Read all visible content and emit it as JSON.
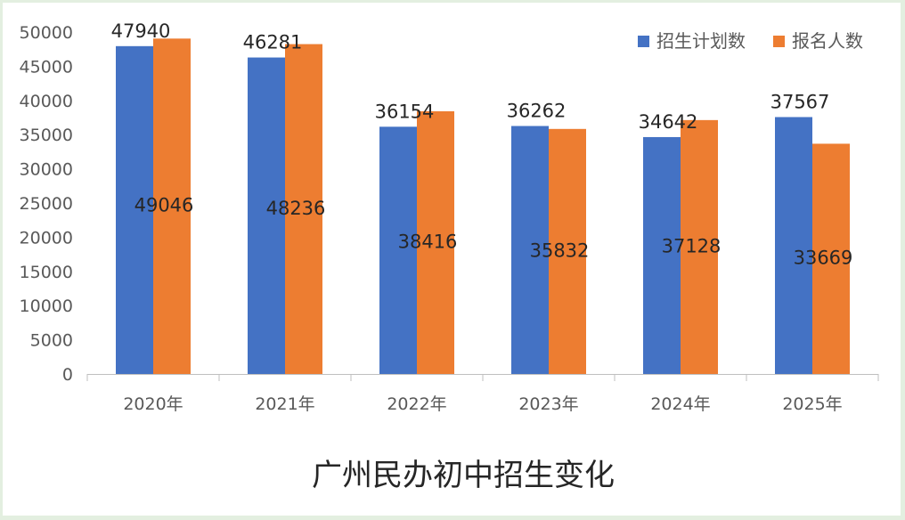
{
  "chart_data": {
    "type": "bar",
    "title": "广州民办初中招生变化",
    "categories": [
      "2020年",
      "2021年",
      "2022年",
      "2023年",
      "2024年",
      "2025年"
    ],
    "series": [
      {
        "name": "招生计划数",
        "color": "#4472c4",
        "values": [
          47940,
          46281,
          36154,
          36262,
          34642,
          37567
        ]
      },
      {
        "name": "报名人数",
        "color": "#ed7d31",
        "values": [
          49046,
          48236,
          38416,
          35832,
          37128,
          33669
        ]
      }
    ],
    "ylim": [
      0,
      50000
    ],
    "yticks": [
      0,
      5000,
      10000,
      15000,
      20000,
      25000,
      30000,
      35000,
      40000,
      45000,
      50000
    ],
    "grid": false,
    "legend": "top-right"
  }
}
